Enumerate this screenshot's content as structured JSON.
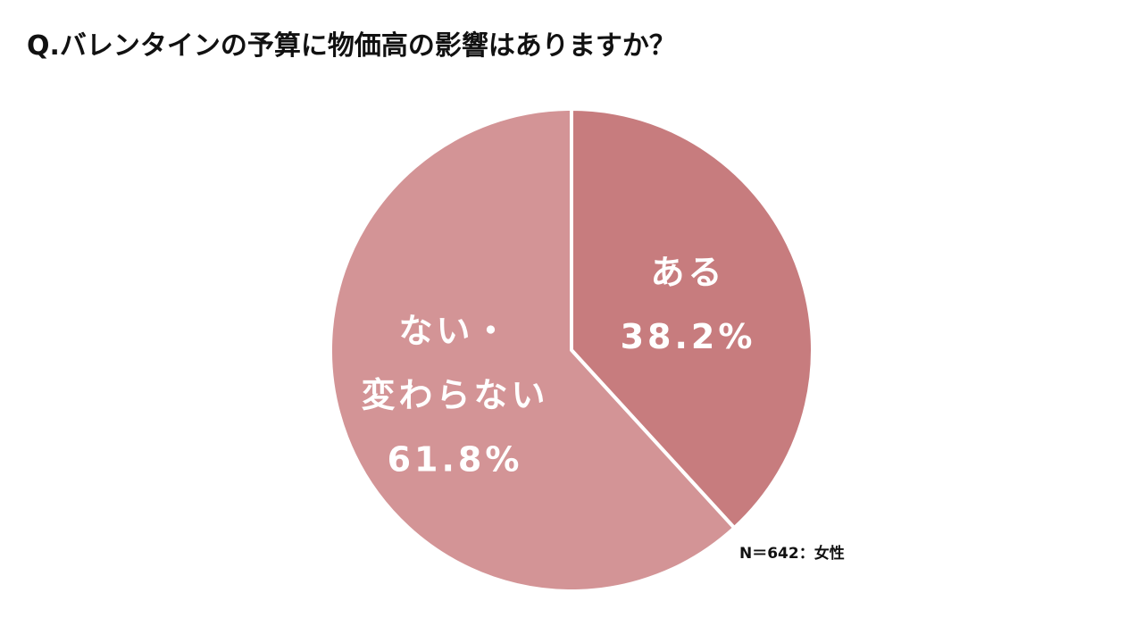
{
  "chart_data": {
    "type": "pie",
    "title": "Q.バレンタインの予算に物価高の影響はありますか？",
    "categories": [
      "ある",
      "ない・\n変わらない"
    ],
    "values": [
      38.2,
      61.8
    ],
    "value_labels": [
      "38.2%",
      "61.8%"
    ],
    "colors": [
      "#c77c7e",
      "#d39496"
    ],
    "note": "N＝642：女性"
  }
}
